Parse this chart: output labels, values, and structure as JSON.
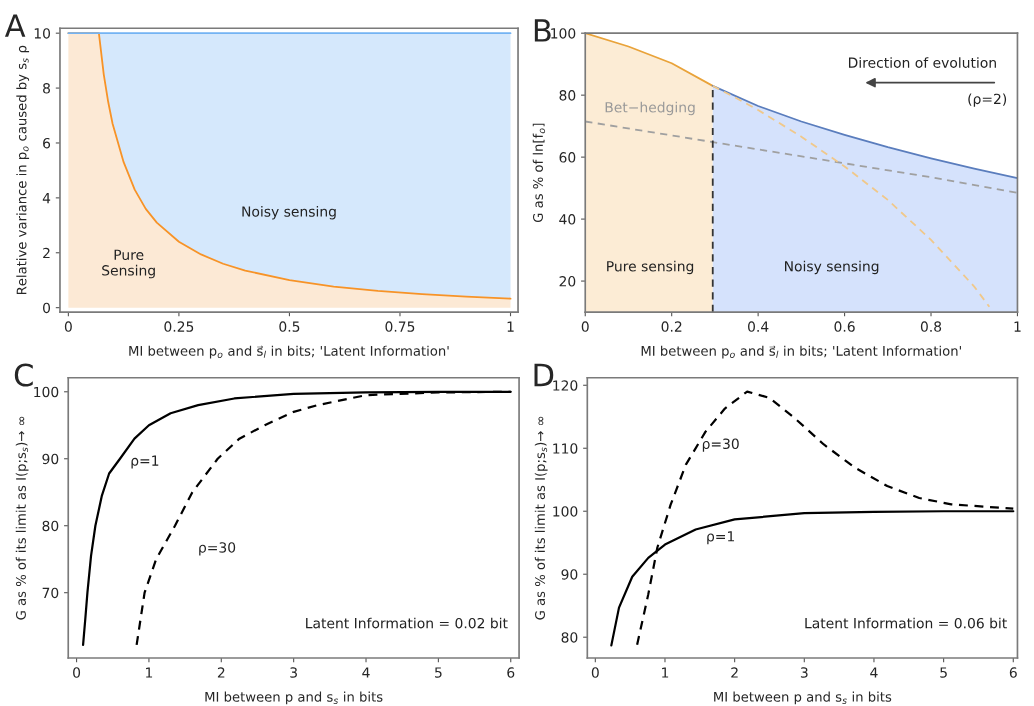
{
  "chart_data": [
    {
      "type": "area",
      "title": "A",
      "xlabel": "MI between p$_{o}$ and s⃗$_{l}$ in bits; 'Latent Information'",
      "ylabel": "Relative variance in p$_{o}$ caused by s$_{s}$ ρ",
      "grid": false,
      "legend": false,
      "x": [
        0,
        0.069,
        0.08,
        0.09,
        0.1,
        0.125,
        0.15,
        0.175,
        0.2,
        0.25,
        0.3,
        0.35,
        0.4,
        0.5,
        0.6,
        0.7,
        0.8,
        0.9,
        1
      ],
      "stacked": true,
      "series": [
        {
          "color": "#f79327",
          "values": [
            10,
            10,
            8.5,
            7.5,
            6.7,
            5.3,
            4.3,
            3.6,
            3.1,
            2.4,
            1.94,
            1.6,
            1.35,
            1.0,
            0.77,
            0.61,
            0.49,
            0.4,
            0.33
          ]
        },
        {
          "color": "#73b3f3",
          "values": [
            0,
            0,
            1.5,
            2.5,
            3.3,
            4.7,
            5.7,
            6.4,
            6.9,
            7.6,
            8.06,
            8.4,
            8.65,
            9.0,
            9.23,
            9.39,
            9.51,
            9.6,
            9.67
          ]
        }
      ],
      "xlim": [
        -0.019,
        1.017
      ],
      "ylim": [
        -0.16,
        10.18
      ],
      "xticks": [
        0,
        0.25,
        0.5,
        0.75,
        1
      ],
      "yticks": [
        0,
        2,
        4,
        6,
        8,
        10
      ],
      "annotations": [
        "Noisy sensing",
        "Pure\nSensing"
      ]
    },
    {
      "type": "area",
      "title": "B",
      "xlabel": "MI between p$_{o}$ and s⃗$_{l}$ in bits; 'Latent Information'",
      "ylabel": "G as % of ln[f$_{o}$]",
      "grid": false,
      "legend": false,
      "series": [
        {
          "color": "#e9a33a",
          "x": [
            0,
            0.1,
            0.2,
            0.295
          ],
          "values": [
            100,
            95.7,
            90.3,
            83
          ]
        },
        {
          "color": "#5a7dbd",
          "x": [
            0.295,
            0.4,
            0.5,
            0.6,
            0.7,
            0.8,
            0.9,
            1
          ],
          "values": [
            83,
            76.5,
            71.5,
            67.2,
            63.2,
            59.6,
            56.3,
            53.2
          ]
        },
        {
          "type": "line",
          "color": "#a0a0a0",
          "line_style": "dashed",
          "x": [
            0,
            0.2,
            0.4,
            0.6,
            0.8,
            1
          ],
          "values": [
            71.5,
            67.0,
            62.5,
            58.0,
            53.5,
            48.5
          ]
        },
        {
          "type": "line",
          "color": "#f0c88a",
          "line_style": "dashed",
          "x": [
            0.295,
            0.35,
            0.4,
            0.5,
            0.6,
            0.7,
            0.8,
            0.9,
            0.935
          ],
          "values": [
            83,
            79,
            75.2,
            66.6,
            57,
            46.2,
            33.3,
            18.2,
            11.7
          ]
        },
        {
          "type": "line",
          "color": "#333333",
          "line_style": "dashed",
          "x": [
            0.295,
            0.295
          ],
          "values": [
            10,
            83
          ]
        }
      ],
      "xlim": [
        0,
        1
      ],
      "ylim": [
        10,
        100
      ],
      "xticks": [
        0,
        0.2,
        0.4,
        0.6,
        0.8,
        1
      ],
      "yticks": [
        20,
        40,
        60,
        80,
        100
      ],
      "annotations": [
        "Pure sensing",
        "Noisy sensing",
        "Bet−hedging",
        "Direction of evolution",
        "(ρ=2)"
      ]
    },
    {
      "type": "line",
      "title": "C",
      "xlabel": "MI between p and s$_{s}$ in bits",
      "ylabel": "G as % of its limit as I(p;s$_{s}$)→ ∞",
      "grid": false,
      "legend": false,
      "series": [
        {
          "color": "#000000",
          "line_style": "solid",
          "x": [
            0.09,
            0.12,
            0.15,
            0.2,
            0.26,
            0.35,
            0.45,
            0.6,
            0.8,
            1,
            1.3,
            1.68,
            2.18,
            3,
            4,
            5,
            6
          ],
          "values": [
            62.2,
            66,
            70,
            75.5,
            80,
            84.5,
            87.8,
            90,
            93,
            95,
            96.8,
            98,
            99,
            99.7,
            99.9,
            100,
            100
          ]
        },
        {
          "color": "#000000",
          "line_style": "dashed",
          "x": [
            0.83,
            0.94,
            1.1,
            1.36,
            1.6,
            1.95,
            2.25,
            2.6,
            3.0,
            3.33,
            4,
            5,
            6
          ],
          "values": [
            62.2,
            70,
            75,
            80,
            85,
            90,
            93,
            95,
            97,
            98,
            99.5,
            99.9,
            100
          ]
        }
      ],
      "xlim": [
        -0.115,
        6.115
      ],
      "ylim": [
        60.25,
        102.1
      ],
      "xticks": [
        0,
        1,
        2,
        3,
        4,
        5,
        6
      ],
      "yticks": [
        70,
        80,
        90,
        100
      ],
      "annotations": [
        "ρ=1",
        "ρ=30",
        "Latent Information = 0.02 bit"
      ]
    },
    {
      "type": "line",
      "title": "D",
      "xlabel": "MI between p and s$_{s}$ in bits",
      "ylabel": "G as % of its limit as I(p;s$_{s}$)→ ∞",
      "grid": false,
      "legend": false,
      "series": [
        {
          "color": "#000000",
          "line_style": "solid",
          "x": [
            0.23,
            0.34,
            0.53,
            0.76,
            1,
            1.44,
            2,
            3,
            4,
            5,
            6
          ],
          "values": [
            78.7,
            84.7,
            89.6,
            92.6,
            94.7,
            97.1,
            98.7,
            99.7,
            99.9,
            100,
            100
          ]
        },
        {
          "color": "#000000",
          "line_style": "dashed",
          "x": [
            0.6,
            0.76,
            0.89,
            1.08,
            1.3,
            1.58,
            1.86,
            2.18,
            2.5,
            2.86,
            3.28,
            3.73,
            4.19,
            4.65,
            5.11,
            6
          ],
          "values": [
            78.8,
            86.8,
            94.2,
            101,
            107.4,
            112.6,
            116.3,
            119,
            118,
            114.8,
            110.6,
            106.9,
            104,
            102.1,
            101.1,
            100.4
          ]
        }
      ],
      "xlim": [
        -0.115,
        6.06
      ],
      "ylim": [
        76.7,
        121.2
      ],
      "xticks": [
        0,
        1,
        2,
        3,
        4,
        5,
        6
      ],
      "yticks": [
        80,
        90,
        100,
        110,
        120
      ],
      "annotations": [
        "ρ=30",
        "ρ=1",
        "Latent Information = 0.06 bit"
      ]
    }
  ]
}
